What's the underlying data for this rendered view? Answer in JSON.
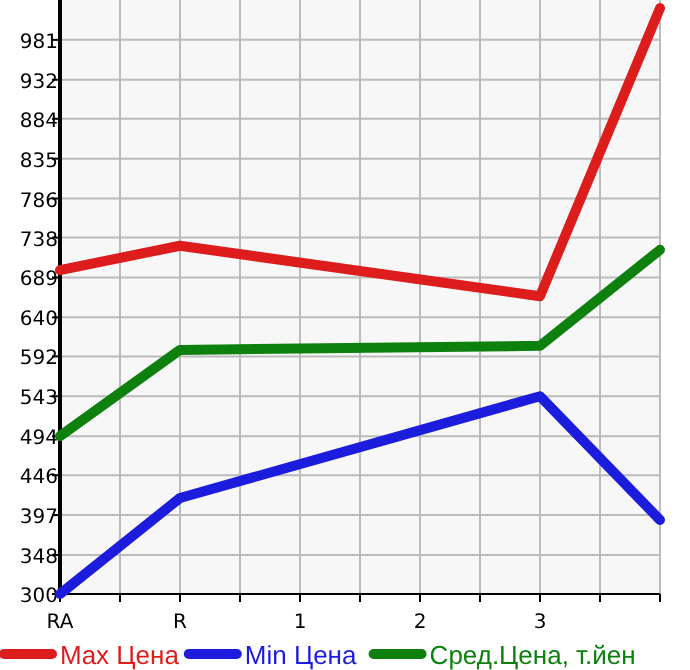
{
  "chart_data": {
    "type": "line",
    "categories": [
      "RA",
      "R",
      "1",
      "2",
      "3",
      null
    ],
    "series": [
      {
        "name": "Max Цена",
        "color": "#dd1c1c",
        "values": [
          698,
          728,
          null,
          null,
          666,
          1020
        ]
      },
      {
        "name": "Min Цена",
        "color": "#1c1cdd",
        "values": [
          300,
          418,
          null,
          null,
          543,
          391
        ]
      },
      {
        "name": "Сред.Цена, т.йен",
        "color": "#0e800e",
        "values": [
          494,
          600,
          null,
          null,
          605,
          723
        ]
      }
    ],
    "ylim": [
      300,
      1030
    ],
    "yticks": [
      300,
      348,
      397,
      446,
      494,
      543,
      592,
      640,
      689,
      738,
      786,
      835,
      884,
      932,
      981
    ],
    "grid": true,
    "legend": "bottom",
    "marker": "none",
    "line_style": "solid"
  }
}
